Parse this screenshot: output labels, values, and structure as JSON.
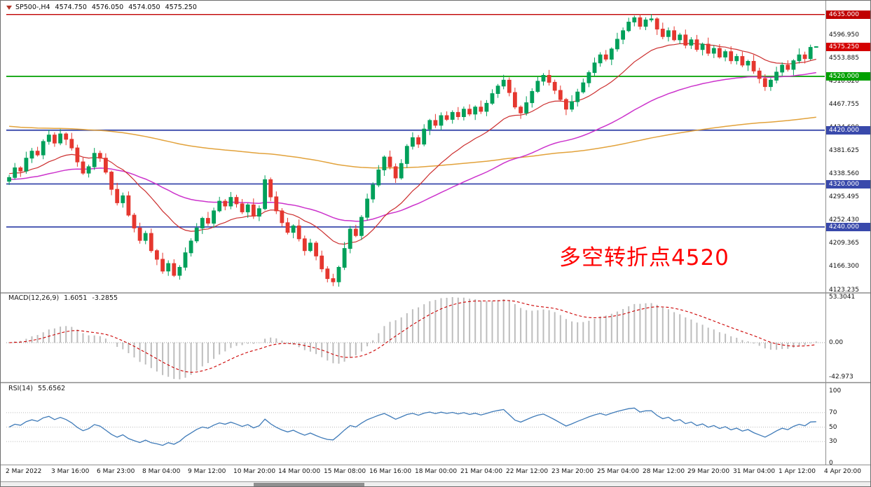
{
  "header": {
    "symbol_period": "SP500-,H4",
    "open": "4574.750",
    "high": "4576.050",
    "low": "4574.050",
    "close": "4575.250"
  },
  "annotation": {
    "text": "多空转折点4520",
    "color": "#FF0000"
  },
  "chart_data": {
    "type": "candlestick",
    "title": "SP500- H4 candlestick chart with MACD and RSI",
    "candle_format": "[open,high,low,close]",
    "bars_per_x_label": 8,
    "x_labels": [
      "2 Mar 2022",
      "3 Mar 16:00",
      "6 Mar 23:00",
      "8 Mar 04:00",
      "9 Mar 12:00",
      "10 Mar 20:00",
      "14 Mar 00:00",
      "15 Mar 08:00",
      "16 Mar 16:00",
      "18 Mar 00:00",
      "21 Mar 04:00",
      "22 Mar 12:00",
      "23 Mar 20:00",
      "25 Mar 04:00",
      "28 Mar 12:00",
      "29 Mar 20:00",
      "31 Mar 04:00",
      "1 Apr 12:00",
      "4 Apr 20:00"
    ],
    "y_axis": {
      "min": 4120,
      "max": 4649,
      "labels": [
        "4596.950",
        "4553.885",
        "4510.820",
        "4467.755",
        "4424.690",
        "4381.625",
        "4338.560",
        "4295.495",
        "4252.430",
        "4209.365",
        "4166.300",
        "4123.235"
      ]
    },
    "up_color": "#00A05A",
    "down_color": "#E5372F",
    "candles": [
      [
        4325,
        4337,
        4318,
        4332
      ],
      [
        4332,
        4359,
        4328,
        4350
      ],
      [
        4350,
        4353,
        4333,
        4344
      ],
      [
        4344,
        4380,
        4339,
        4368
      ],
      [
        4368,
        4387,
        4359,
        4381
      ],
      [
        4381,
        4389,
        4371,
        4374
      ],
      [
        4374,
        4403,
        4366,
        4399
      ],
      [
        4399,
        4421,
        4393,
        4411
      ],
      [
        4411,
        4416,
        4389,
        4396
      ],
      [
        4396,
        4422,
        4392,
        4413
      ],
      [
        4413,
        4416,
        4392,
        4403
      ],
      [
        4403,
        4415,
        4382,
        4387
      ],
      [
        4387,
        4393,
        4352,
        4361
      ],
      [
        4361,
        4369,
        4337,
        4340
      ],
      [
        4340,
        4356,
        4332,
        4352
      ],
      [
        4352,
        4387,
        4346,
        4377
      ],
      [
        4377,
        4382,
        4361,
        4368
      ],
      [
        4368,
        4377,
        4338,
        4342
      ],
      [
        4342,
        4345,
        4299,
        4310
      ],
      [
        4310,
        4322,
        4280,
        4285
      ],
      [
        4285,
        4304,
        4276,
        4298
      ],
      [
        4298,
        4306,
        4259,
        4262
      ],
      [
        4262,
        4266,
        4230,
        4238
      ],
      [
        4238,
        4248,
        4209,
        4215
      ],
      [
        4215,
        4233,
        4208,
        4228
      ],
      [
        4228,
        4237,
        4192,
        4196
      ],
      [
        4196,
        4199,
        4169,
        4180
      ],
      [
        4180,
        4192,
        4153,
        4158
      ],
      [
        4158,
        4178,
        4149,
        4172
      ],
      [
        4172,
        4180,
        4147,
        4150
      ],
      [
        4150,
        4169,
        4142,
        4165
      ],
      [
        4165,
        4202,
        4159,
        4192
      ],
      [
        4192,
        4219,
        4185,
        4214
      ],
      [
        4214,
        4247,
        4210,
        4238
      ],
      [
        4238,
        4259,
        4227,
        4256
      ],
      [
        4256,
        4268,
        4242,
        4247
      ],
      [
        4247,
        4276,
        4238,
        4270
      ],
      [
        4270,
        4296,
        4267,
        4288
      ],
      [
        4288,
        4292,
        4271,
        4279
      ],
      [
        4279,
        4305,
        4273,
        4295
      ],
      [
        4295,
        4300,
        4276,
        4283
      ],
      [
        4283,
        4292,
        4264,
        4268
      ],
      [
        4268,
        4284,
        4257,
        4281
      ],
      [
        4281,
        4293,
        4255,
        4260
      ],
      [
        4260,
        4280,
        4251,
        4274
      ],
      [
        4274,
        4336,
        4271,
        4328
      ],
      [
        4328,
        4332,
        4288,
        4296
      ],
      [
        4296,
        4306,
        4264,
        4270
      ],
      [
        4270,
        4275,
        4241,
        4248
      ],
      [
        4248,
        4257,
        4226,
        4230
      ],
      [
        4230,
        4245,
        4219,
        4242
      ],
      [
        4242,
        4254,
        4213,
        4218
      ],
      [
        4218,
        4224,
        4187,
        4196
      ],
      [
        4196,
        4218,
        4193,
        4210
      ],
      [
        4210,
        4214,
        4178,
        4186
      ],
      [
        4186,
        4196,
        4156,
        4162
      ],
      [
        4162,
        4167,
        4137,
        4144
      ],
      [
        4144,
        4153,
        4130,
        4138
      ],
      [
        4138,
        4168,
        4129,
        4165
      ],
      [
        4165,
        4212,
        4160,
        4200
      ],
      [
        4200,
        4242,
        4191,
        4236
      ],
      [
        4236,
        4244,
        4221,
        4224
      ],
      [
        4224,
        4262,
        4216,
        4258
      ],
      [
        4258,
        4302,
        4252,
        4292
      ],
      [
        4292,
        4323,
        4285,
        4318
      ],
      [
        4318,
        4355,
        4314,
        4346
      ],
      [
        4346,
        4373,
        4335,
        4370
      ],
      [
        4370,
        4382,
        4347,
        4352
      ],
      [
        4352,
        4358,
        4322,
        4331
      ],
      [
        4331,
        4366,
        4328,
        4358
      ],
      [
        4358,
        4394,
        4350,
        4390
      ],
      [
        4390,
        4416,
        4384,
        4406
      ],
      [
        4406,
        4411,
        4387,
        4394
      ],
      [
        4394,
        4431,
        4390,
        4422
      ],
      [
        4422,
        4441,
        4411,
        4438
      ],
      [
        4438,
        4450,
        4424,
        4429
      ],
      [
        4429,
        4453,
        4420,
        4447
      ],
      [
        4447,
        4455,
        4437,
        4440
      ],
      [
        4440,
        4457,
        4432,
        4453
      ],
      [
        4453,
        4463,
        4439,
        4445
      ],
      [
        4445,
        4464,
        4438,
        4459
      ],
      [
        4459,
        4468,
        4446,
        4450
      ],
      [
        4450,
        4466,
        4439,
        4463
      ],
      [
        4463,
        4475,
        4450,
        4455
      ],
      [
        4455,
        4476,
        4446,
        4470
      ],
      [
        4470,
        4496,
        4467,
        4488
      ],
      [
        4488,
        4506,
        4480,
        4502
      ],
      [
        4502,
        4523,
        4496,
        4513
      ],
      [
        4513,
        4518,
        4483,
        4490
      ],
      [
        4490,
        4499,
        4459,
        4463
      ],
      [
        4463,
        4466,
        4441,
        4452
      ],
      [
        4452,
        4483,
        4447,
        4471
      ],
      [
        4471,
        4498,
        4462,
        4492
      ],
      [
        4492,
        4519,
        4489,
        4511
      ],
      [
        4511,
        4526,
        4503,
        4522
      ],
      [
        4522,
        4532,
        4503,
        4509
      ],
      [
        4509,
        4514,
        4487,
        4494
      ],
      [
        4494,
        4503,
        4473,
        4477
      ],
      [
        4477,
        4480,
        4448,
        4459
      ],
      [
        4459,
        4485,
        4454,
        4473
      ],
      [
        4473,
        4497,
        4464,
        4491
      ],
      [
        4491,
        4516,
        4488,
        4508
      ],
      [
        4508,
        4531,
        4500,
        4527
      ],
      [
        4527,
        4555,
        4521,
        4545
      ],
      [
        4545,
        4565,
        4538,
        4560
      ],
      [
        4560,
        4569,
        4548,
        4552
      ],
      [
        4552,
        4574,
        4541,
        4571
      ],
      [
        4571,
        4601,
        4566,
        4589
      ],
      [
        4589,
        4611,
        4580,
        4605
      ],
      [
        4605,
        4629,
        4602,
        4621
      ],
      [
        4621,
        4633,
        4613,
        4629
      ],
      [
        4629,
        4636,
        4607,
        4613
      ],
      [
        4613,
        4630,
        4606,
        4625
      ],
      [
        4625,
        4636,
        4621,
        4627
      ],
      [
        4627,
        4630,
        4597,
        4608
      ],
      [
        4608,
        4620,
        4589,
        4594
      ],
      [
        4594,
        4611,
        4585,
        4605
      ],
      [
        4605,
        4613,
        4585,
        4588
      ],
      [
        4588,
        4601,
        4580,
        4597
      ],
      [
        4597,
        4607,
        4572,
        4578
      ],
      [
        4578,
        4593,
        4571,
        4588
      ],
      [
        4588,
        4597,
        4566,
        4570
      ],
      [
        4570,
        4583,
        4559,
        4580
      ],
      [
        4580,
        4592,
        4558,
        4563
      ],
      [
        4563,
        4578,
        4554,
        4572
      ],
      [
        4572,
        4580,
        4553,
        4556
      ],
      [
        4556,
        4570,
        4548,
        4566
      ],
      [
        4566,
        4576,
        4543,
        4549
      ],
      [
        4549,
        4562,
        4542,
        4557
      ],
      [
        4557,
        4566,
        4537,
        4541
      ],
      [
        4541,
        4551,
        4530,
        4548
      ],
      [
        4548,
        4560,
        4525,
        4530
      ],
      [
        4530,
        4536,
        4507,
        4516
      ],
      [
        4516,
        4524,
        4493,
        4501
      ],
      [
        4501,
        4517,
        4493,
        4513
      ],
      [
        4513,
        4538,
        4507,
        4528
      ],
      [
        4528,
        4546,
        4521,
        4541
      ],
      [
        4541,
        4550,
        4529,
        4533
      ],
      [
        4533,
        4552,
        4522,
        4549
      ],
      [
        4549,
        4572,
        4544,
        4560
      ],
      [
        4560,
        4566,
        4544,
        4553
      ],
      [
        4553,
        4579,
        4550,
        4574
      ],
      [
        4574.75,
        4576.05,
        4574.05,
        4575.25
      ]
    ],
    "moving_averages": [
      {
        "name": "ma-fast",
        "period": 18,
        "seed": 4340,
        "color": "#CC2E2E"
      },
      {
        "name": "ma-mid",
        "period": 55,
        "seed": 4328,
        "color": "#CC33CC"
      },
      {
        "name": "ma-slow",
        "period": 200,
        "seed": 4428,
        "color": "#E2A23B"
      }
    ],
    "horizontal_lines": [
      {
        "price": 4635.0,
        "label": "4635.000",
        "color": "#C00000",
        "width": 1.4
      },
      {
        "price": 4520.0,
        "label": "4520.000",
        "color": "#00A000",
        "width": 1.8
      },
      {
        "price": 4420.0,
        "label": "4420.000",
        "color": "#3949AB",
        "width": 1.8
      },
      {
        "price": 4320.0,
        "label": "4320.000",
        "color": "#3949AB",
        "width": 1.8
      },
      {
        "price": 4240.0,
        "label": "4240.000",
        "color": "#3949AB",
        "width": 1.8
      }
    ],
    "current_price": {
      "value": 4575.25,
      "label": "4575.250",
      "color": "#D40000"
    },
    "indicators": {
      "macd": {
        "label": "MACD(12,26,9)",
        "value_main": "1.6051",
        "value_signal": "-3.2855",
        "fast": 12,
        "slow": 26,
        "signal": 9,
        "scale_labels": [
          "53.3041",
          "0.00",
          "-42.973"
        ],
        "histogram_color": "#BDBDBD",
        "signal_color": "#CC0000"
      },
      "rsi": {
        "label": "RSI(14)",
        "value": "55.6562",
        "period": 14,
        "scale_labels": [
          "100",
          "70",
          "50",
          "30",
          "0"
        ],
        "levels": [
          70,
          50,
          30
        ],
        "color": "#3E7AB8"
      }
    }
  }
}
